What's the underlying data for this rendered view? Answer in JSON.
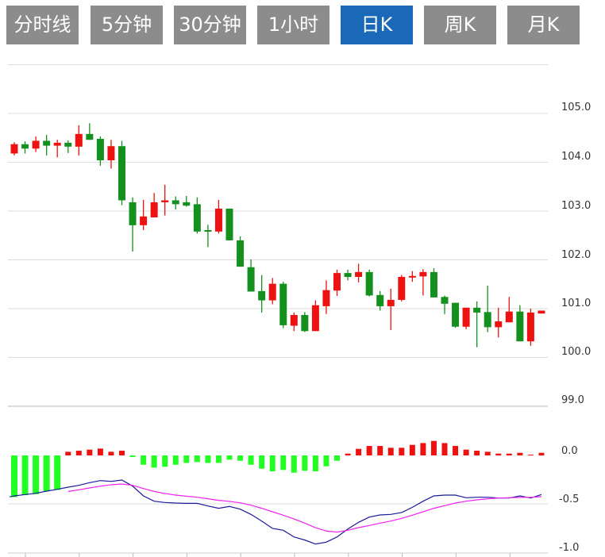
{
  "tabs": [
    {
      "label": "分时线",
      "active": false
    },
    {
      "label": "5分钟",
      "active": false
    },
    {
      "label": "30分钟",
      "active": false
    },
    {
      "label": "1小时",
      "active": false
    },
    {
      "label": "日K",
      "active": true
    },
    {
      "label": "周K",
      "active": false
    },
    {
      "label": "月K",
      "active": false
    }
  ],
  "colors": {
    "up": "#ee1111",
    "down": "#14901e",
    "macd_up": "#ee1111",
    "macd_down": "#22ff22",
    "dif": "#1a1a9a",
    "dea": "#ee22ee",
    "tab_active": "#1a68b8",
    "tab": "#8c8c8c",
    "grid": "#dddddd"
  },
  "chart_data": [
    {
      "type": "candlestick",
      "ylim": [
        99.0,
        106.0
      ],
      "yticks": [
        "105.0",
        "104.0",
        "103.0",
        "102.0",
        "101.0",
        "100.0",
        "99.0"
      ],
      "grid": true,
      "ohlc": [
        [
          104.18,
          104.41,
          104.14,
          104.37
        ],
        [
          104.37,
          104.43,
          104.18,
          104.28
        ],
        [
          104.28,
          104.53,
          104.21,
          104.44
        ],
        [
          104.44,
          104.56,
          104.14,
          104.34
        ],
        [
          104.34,
          104.46,
          104.1,
          104.4
        ],
        [
          104.4,
          104.45,
          104.19,
          104.32
        ],
        [
          104.32,
          104.76,
          104.14,
          104.58
        ],
        [
          104.58,
          104.8,
          104.46,
          104.46
        ],
        [
          104.48,
          104.53,
          103.93,
          104.04
        ],
        [
          104.04,
          104.46,
          103.87,
          104.33
        ],
        [
          104.33,
          104.44,
          103.12,
          103.22
        ],
        [
          103.18,
          103.28,
          102.17,
          102.71
        ],
        [
          102.71,
          103.23,
          102.61,
          102.89
        ],
        [
          102.87,
          103.37,
          102.87,
          103.18
        ],
        [
          103.18,
          103.54,
          102.91,
          103.22
        ],
        [
          103.22,
          103.3,
          103.03,
          103.14
        ],
        [
          103.18,
          103.31,
          103.09,
          103.11
        ],
        [
          103.14,
          103.28,
          102.54,
          102.58
        ],
        [
          102.61,
          102.72,
          102.26,
          102.6
        ],
        [
          102.58,
          103.23,
          102.54,
          103.05
        ],
        [
          103.05,
          103.05,
          102.4,
          102.4
        ],
        [
          102.4,
          102.48,
          101.86,
          101.86
        ],
        [
          101.85,
          102.01,
          101.35,
          101.35
        ],
        [
          101.36,
          101.69,
          100.92,
          101.17
        ],
        [
          101.17,
          101.63,
          101.09,
          101.51
        ],
        [
          101.51,
          101.55,
          100.6,
          100.66
        ],
        [
          100.65,
          100.92,
          100.54,
          100.87
        ],
        [
          100.87,
          100.93,
          100.52,
          100.54
        ],
        [
          100.54,
          101.17,
          100.54,
          101.07
        ],
        [
          101.05,
          101.58,
          100.89,
          101.38
        ],
        [
          101.37,
          101.8,
          101.26,
          101.73
        ],
        [
          101.73,
          101.8,
          101.58,
          101.65
        ],
        [
          101.65,
          101.92,
          101.54,
          101.75
        ],
        [
          101.75,
          101.8,
          101.25,
          101.27
        ],
        [
          101.28,
          101.36,
          100.96,
          101.05
        ],
        [
          101.05,
          101.41,
          100.56,
          101.18
        ],
        [
          101.18,
          101.69,
          101.15,
          101.65
        ],
        [
          101.65,
          101.77,
          101.55,
          101.67
        ],
        [
          101.66,
          101.81,
          101.27,
          101.75
        ],
        [
          101.75,
          101.83,
          101.23,
          101.23
        ],
        [
          101.24,
          101.27,
          100.89,
          101.1
        ],
        [
          101.12,
          101.12,
          100.61,
          100.63
        ],
        [
          100.63,
          101.02,
          100.58,
          101.02
        ],
        [
          101.02,
          101.15,
          100.21,
          100.92
        ],
        [
          100.93,
          101.47,
          100.52,
          100.62
        ],
        [
          100.62,
          101.02,
          100.41,
          100.74
        ],
        [
          100.72,
          101.24,
          100.72,
          100.94
        ],
        [
          100.94,
          101.07,
          100.33,
          100.33
        ],
        [
          100.33,
          101.0,
          100.24,
          100.92
        ],
        [
          100.9,
          100.96,
          100.9,
          100.96
        ]
      ]
    },
    {
      "type": "macd",
      "ylim": [
        -1.0,
        0.1
      ],
      "yticks": [
        "0.0",
        "-0.5",
        "-1.0"
      ],
      "histogram": [
        -0.43,
        -0.41,
        -0.4,
        -0.37,
        -0.355,
        0.038,
        0.049,
        0.06,
        0.071,
        0.038,
        0.049,
        -0.016,
        -0.096,
        -0.126,
        -0.117,
        -0.096,
        -0.077,
        -0.068,
        -0.077,
        -0.077,
        -0.044,
        -0.055,
        -0.096,
        -0.137,
        -0.164,
        -0.15,
        -0.178,
        -0.158,
        -0.164,
        -0.112,
        -0.055,
        0.019,
        0.068,
        0.098,
        0.098,
        0.079,
        0.079,
        0.109,
        0.128,
        0.15,
        0.128,
        0.098,
        0.06,
        0.049,
        0.038,
        0.019,
        0.019,
        0.027,
        0.008,
        0.027
      ],
      "dif": [
        -0.418,
        -0.404,
        -0.391,
        -0.369,
        -0.35,
        -0.328,
        -0.309,
        -0.281,
        -0.26,
        -0.268,
        -0.254,
        -0.317,
        -0.418,
        -0.473,
        -0.486,
        -0.492,
        -0.495,
        -0.495,
        -0.522,
        -0.546,
        -0.527,
        -0.555,
        -0.609,
        -0.678,
        -0.754,
        -0.773,
        -0.842,
        -0.874,
        -0.915,
        -0.896,
        -0.842,
        -0.76,
        -0.691,
        -0.637,
        -0.615,
        -0.609,
        -0.59,
        -0.536,
        -0.473,
        -0.418,
        -0.41,
        -0.41,
        -0.437,
        -0.432,
        -0.432,
        -0.44,
        -0.44,
        -0.418,
        -0.44,
        -0.404
      ],
      "dea_start_index": 5,
      "dea": [
        -0.372,
        -0.355,
        -0.336,
        -0.317,
        -0.303,
        -0.295,
        -0.309,
        -0.342,
        -0.372,
        -0.393,
        -0.41,
        -0.421,
        -0.432,
        -0.448,
        -0.464,
        -0.475,
        -0.489,
        -0.514,
        -0.546,
        -0.582,
        -0.617,
        -0.656,
        -0.699,
        -0.746,
        -0.781,
        -0.792,
        -0.773,
        -0.746,
        -0.724,
        -0.699,
        -0.678,
        -0.65,
        -0.617,
        -0.582,
        -0.546,
        -0.519,
        -0.492,
        -0.473,
        -0.459,
        -0.448,
        -0.44,
        -0.437,
        -0.434,
        -0.432,
        -0.426
      ]
    }
  ]
}
